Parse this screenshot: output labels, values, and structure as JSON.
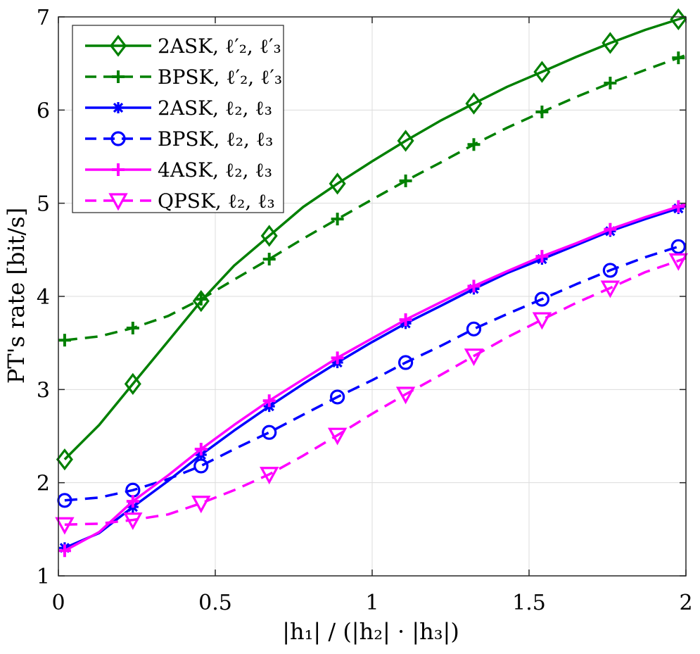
{
  "chart_data": {
    "type": "line",
    "title": "",
    "xlabel": "|h₁| / (|h₂| · |h₃|)",
    "ylabel": "PT's rate [bit/s]",
    "xlim": [
      0,
      2
    ],
    "ylim": [
      1,
      7
    ],
    "xticks": [
      "0",
      "0.5",
      "1",
      "1.5",
      "2"
    ],
    "yticks": [
      "1",
      "2",
      "3",
      "4",
      "5",
      "6",
      "7"
    ],
    "grid": true,
    "legend_position": "top-left",
    "marker_x": [
      0.02,
      0.2373,
      0.4547,
      0.672,
      0.8893,
      1.1067,
      1.324,
      1.5413,
      1.7587,
      1.976
    ],
    "series": [
      {
        "name": "2ASK, ℓ′₂, ℓ′₃",
        "color": "#008000",
        "dash": "solid",
        "marker": "diamond",
        "x": [
          0.02,
          0.13,
          0.2373,
          0.35,
          0.4547,
          0.56,
          0.672,
          0.78,
          0.8893,
          1.0,
          1.1067,
          1.22,
          1.324,
          1.43,
          1.5413,
          1.65,
          1.7587,
          1.87,
          2.0
        ],
        "values": [
          2.25,
          2.62,
          3.06,
          3.52,
          3.95,
          4.33,
          4.65,
          4.96,
          5.21,
          5.45,
          5.67,
          5.89,
          6.07,
          6.25,
          6.41,
          6.57,
          6.72,
          6.86,
          7.0
        ]
      },
      {
        "name": "BPSK, ℓ′₂, ℓ′₃",
        "color": "#008000",
        "dash": "dashed",
        "marker": "plus",
        "x": [
          0.02,
          0.13,
          0.2373,
          0.35,
          0.4547,
          0.56,
          0.672,
          0.78,
          0.8893,
          1.0,
          1.1067,
          1.22,
          1.324,
          1.43,
          1.5413,
          1.65,
          1.7587,
          1.87,
          2.0
        ],
        "values": [
          3.53,
          3.57,
          3.66,
          3.79,
          3.97,
          4.18,
          4.4,
          4.62,
          4.83,
          5.04,
          5.24,
          5.44,
          5.63,
          5.81,
          5.98,
          6.14,
          6.29,
          6.43,
          6.59
        ]
      },
      {
        "name": "2ASK, ℓ₂, ℓ₃",
        "color": "#0000ff",
        "dash": "solid",
        "marker": "asterisk",
        "x": [
          0.02,
          0.13,
          0.2373,
          0.35,
          0.4547,
          0.56,
          0.672,
          0.78,
          0.8893,
          1.0,
          1.1067,
          1.22,
          1.324,
          1.43,
          1.5413,
          1.65,
          1.7587,
          1.87,
          2.0
        ],
        "values": [
          1.3,
          1.46,
          1.74,
          2.02,
          2.3,
          2.56,
          2.82,
          3.06,
          3.29,
          3.51,
          3.71,
          3.9,
          4.08,
          4.25,
          4.4,
          4.55,
          4.7,
          4.83,
          4.97
        ]
      },
      {
        "name": "BPSK, ℓ₂, ℓ₃",
        "color": "#0000ff",
        "dash": "dashed",
        "marker": "circle",
        "x": [
          0.02,
          0.13,
          0.2373,
          0.35,
          0.4547,
          0.56,
          0.672,
          0.78,
          0.8893,
          1.0,
          1.1067,
          1.22,
          1.324,
          1.43,
          1.5413,
          1.65,
          1.7587,
          1.87,
          2.0
        ],
        "values": [
          1.81,
          1.84,
          1.92,
          2.04,
          2.18,
          2.36,
          2.54,
          2.73,
          2.92,
          3.1,
          3.29,
          3.47,
          3.65,
          3.81,
          3.97,
          4.13,
          4.28,
          4.42,
          4.56
        ]
      },
      {
        "name": "4ASK, ℓ₂, ℓ₃",
        "color": "#ff00ff",
        "dash": "solid",
        "marker": "plus",
        "x": [
          0.02,
          0.13,
          0.2373,
          0.35,
          0.4547,
          0.56,
          0.672,
          0.78,
          0.8893,
          1.0,
          1.1067,
          1.22,
          1.324,
          1.43,
          1.5413,
          1.65,
          1.7587,
          1.87,
          2.0
        ],
        "values": [
          1.27,
          1.47,
          1.8,
          2.08,
          2.36,
          2.62,
          2.88,
          3.11,
          3.34,
          3.55,
          3.75,
          3.94,
          4.11,
          4.27,
          4.43,
          4.57,
          4.72,
          4.85,
          4.99
        ]
      },
      {
        "name": "QPSK, ℓ₂, ℓ₃",
        "color": "#ff00ff",
        "dash": "dashed",
        "marker": "triangle-down",
        "x": [
          0.02,
          0.13,
          0.2373,
          0.35,
          0.4547,
          0.56,
          0.672,
          0.78,
          0.8893,
          1.0,
          1.1067,
          1.22,
          1.324,
          1.43,
          1.5413,
          1.65,
          1.7587,
          1.87,
          2.0
        ],
        "values": [
          1.55,
          1.56,
          1.6,
          1.66,
          1.78,
          1.92,
          2.09,
          2.29,
          2.51,
          2.74,
          2.95,
          3.16,
          3.36,
          3.56,
          3.75,
          3.93,
          4.09,
          4.26,
          4.41
        ]
      }
    ]
  }
}
